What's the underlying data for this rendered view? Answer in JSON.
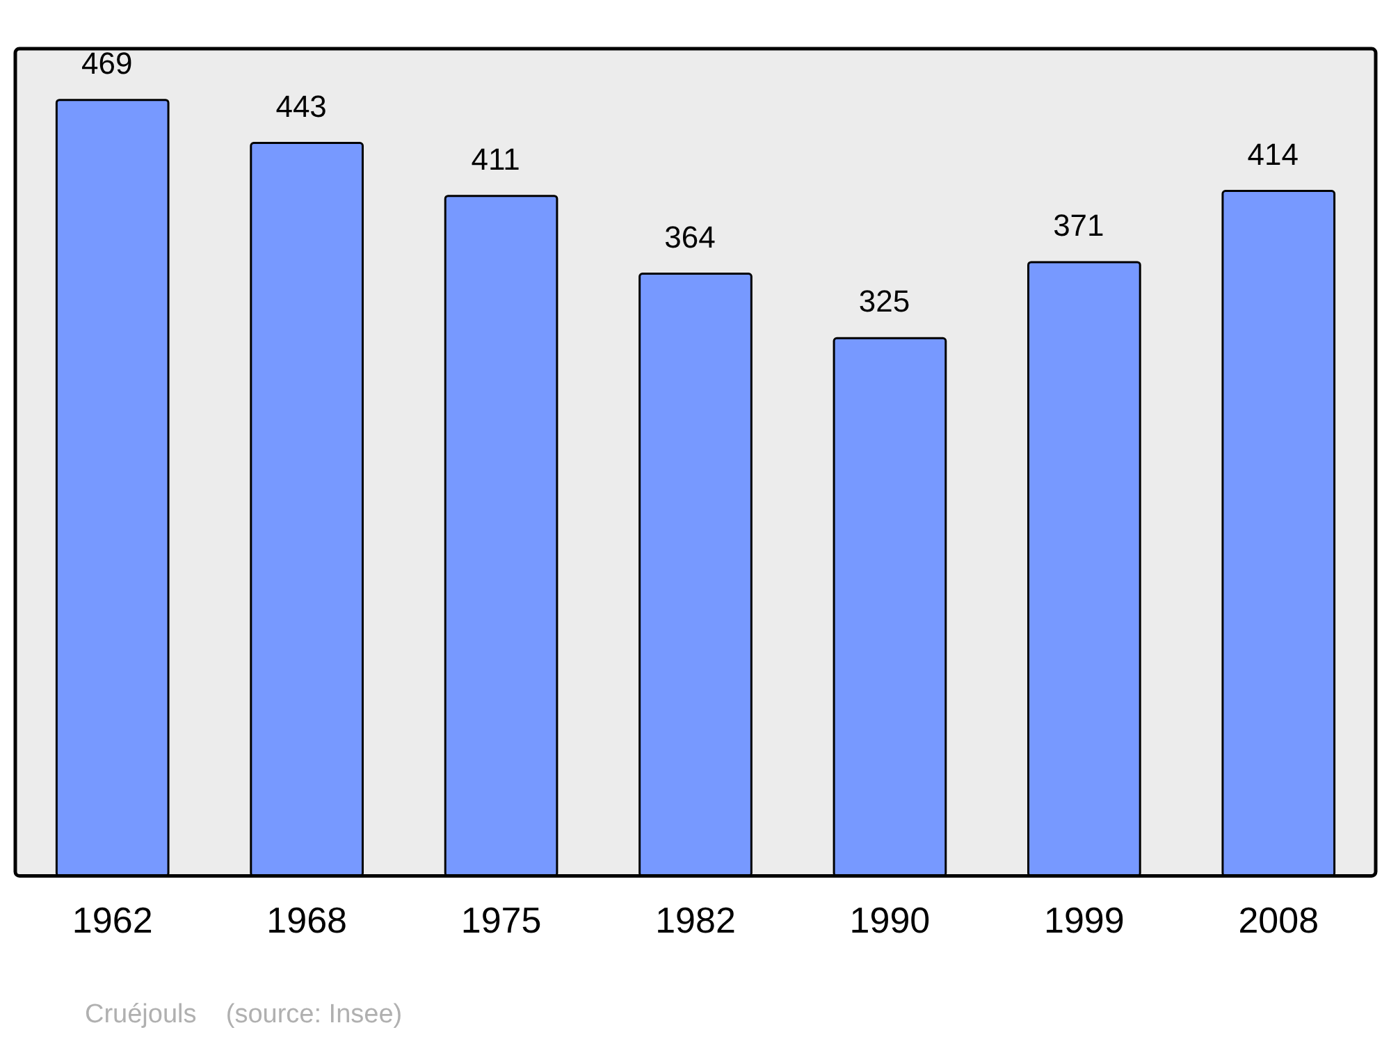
{
  "chart_data": {
    "type": "bar",
    "categories": [
      "1962",
      "1968",
      "1975",
      "1982",
      "1990",
      "1999",
      "2008"
    ],
    "values": [
      469,
      443,
      411,
      364,
      325,
      371,
      414
    ],
    "color": "#7799ff",
    "data_labels": true,
    "grid": false,
    "legend": false,
    "annotations": [
      "Cruéjouls    (source: Insee)"
    ]
  }
}
